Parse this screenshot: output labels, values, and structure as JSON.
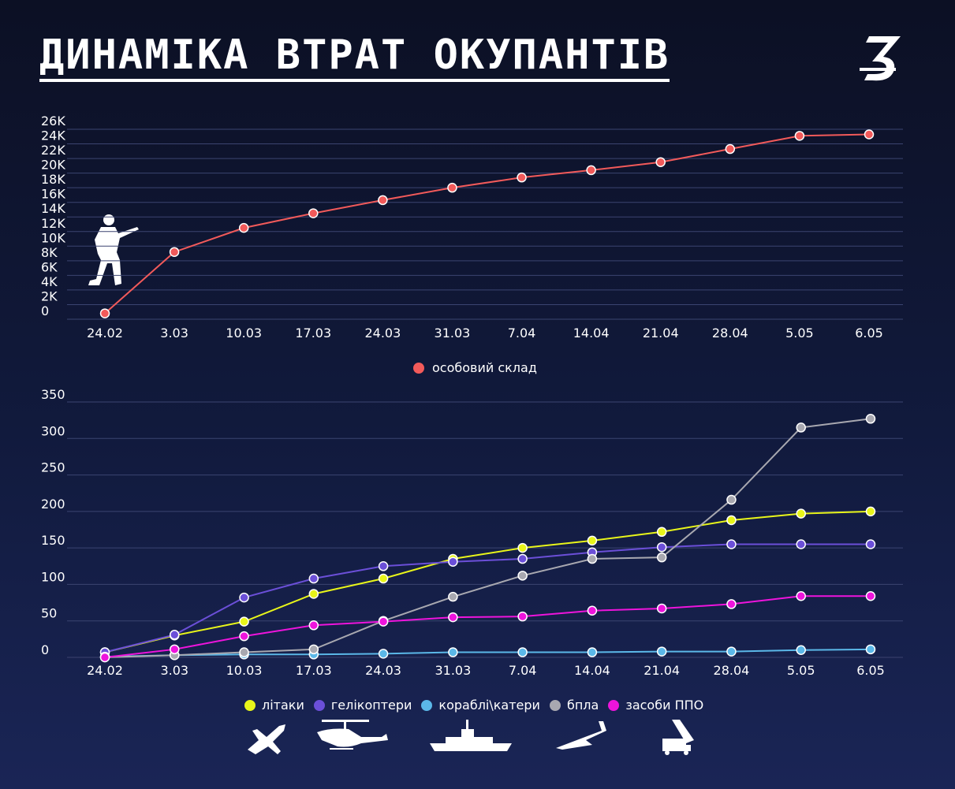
{
  "header": {
    "title": "ДИНАМІКА ВТРАТ ОКУПАНТІВ"
  },
  "chart_data": [
    {
      "type": "line",
      "categories": [
        "24.02",
        "3.03",
        "10.03",
        "17.03",
        "24.03",
        "31.03",
        "7.04",
        "14.04",
        "21.04",
        "28.04",
        "5.05",
        "6.05"
      ],
      "y_ticks": [
        "0",
        "2K",
        "4K",
        "6K",
        "8K",
        "10K",
        "12K",
        "14K",
        "16K",
        "18K",
        "20K",
        "22K",
        "24K",
        "26K"
      ],
      "ylim": [
        0,
        26000
      ],
      "grid": true,
      "legend_position": "bottom-center",
      "series": [
        {
          "name": "особовий склад",
          "color": "#f25a5a",
          "values": [
            800,
            9200,
            12500,
            14500,
            16300,
            18000,
            19400,
            20400,
            21500,
            23300,
            25100,
            25300
          ]
        }
      ]
    },
    {
      "type": "line",
      "categories": [
        "24.02",
        "3.03",
        "10.03",
        "17.03",
        "24.03",
        "31.03",
        "7.04",
        "14.04",
        "21.04",
        "28.04",
        "5.05",
        "6.05"
      ],
      "y_ticks": [
        "0",
        "50",
        "100",
        "150",
        "200",
        "250",
        "300",
        "350"
      ],
      "ylim": [
        0,
        350
      ],
      "grid": true,
      "legend_position": "bottom-center",
      "series": [
        {
          "name": "літаки",
          "color": "#e8f51a",
          "values": [
            7,
            30,
            49,
            87,
            108,
            135,
            150,
            160,
            172,
            188,
            197,
            200
          ]
        },
        {
          "name": "гелікоптери",
          "color": "#6b4fd8",
          "values": [
            7,
            31,
            82,
            108,
            125,
            131,
            135,
            144,
            151,
            155,
            155,
            155
          ]
        },
        {
          "name": "кораблі\\катери",
          "color": "#5bb8e8",
          "values": [
            1,
            3,
            4,
            4,
            5,
            7,
            7,
            7,
            8,
            8,
            10,
            11
          ]
        },
        {
          "name": "бпла",
          "color": "#a8a8b0",
          "values": [
            0,
            3,
            7,
            11,
            50,
            83,
            112,
            135,
            137,
            216,
            315,
            327
          ]
        },
        {
          "name": "засоби ППО",
          "color": "#ee14dc",
          "values": [
            0,
            11,
            29,
            44,
            49,
            55,
            56,
            64,
            67,
            73,
            84,
            84
          ]
        }
      ]
    }
  ],
  "icons": [
    "logo-icon",
    "soldier-icon",
    "plane-icon",
    "helicopter-icon",
    "ship-icon",
    "drone-icon",
    "air-defense-icon"
  ]
}
